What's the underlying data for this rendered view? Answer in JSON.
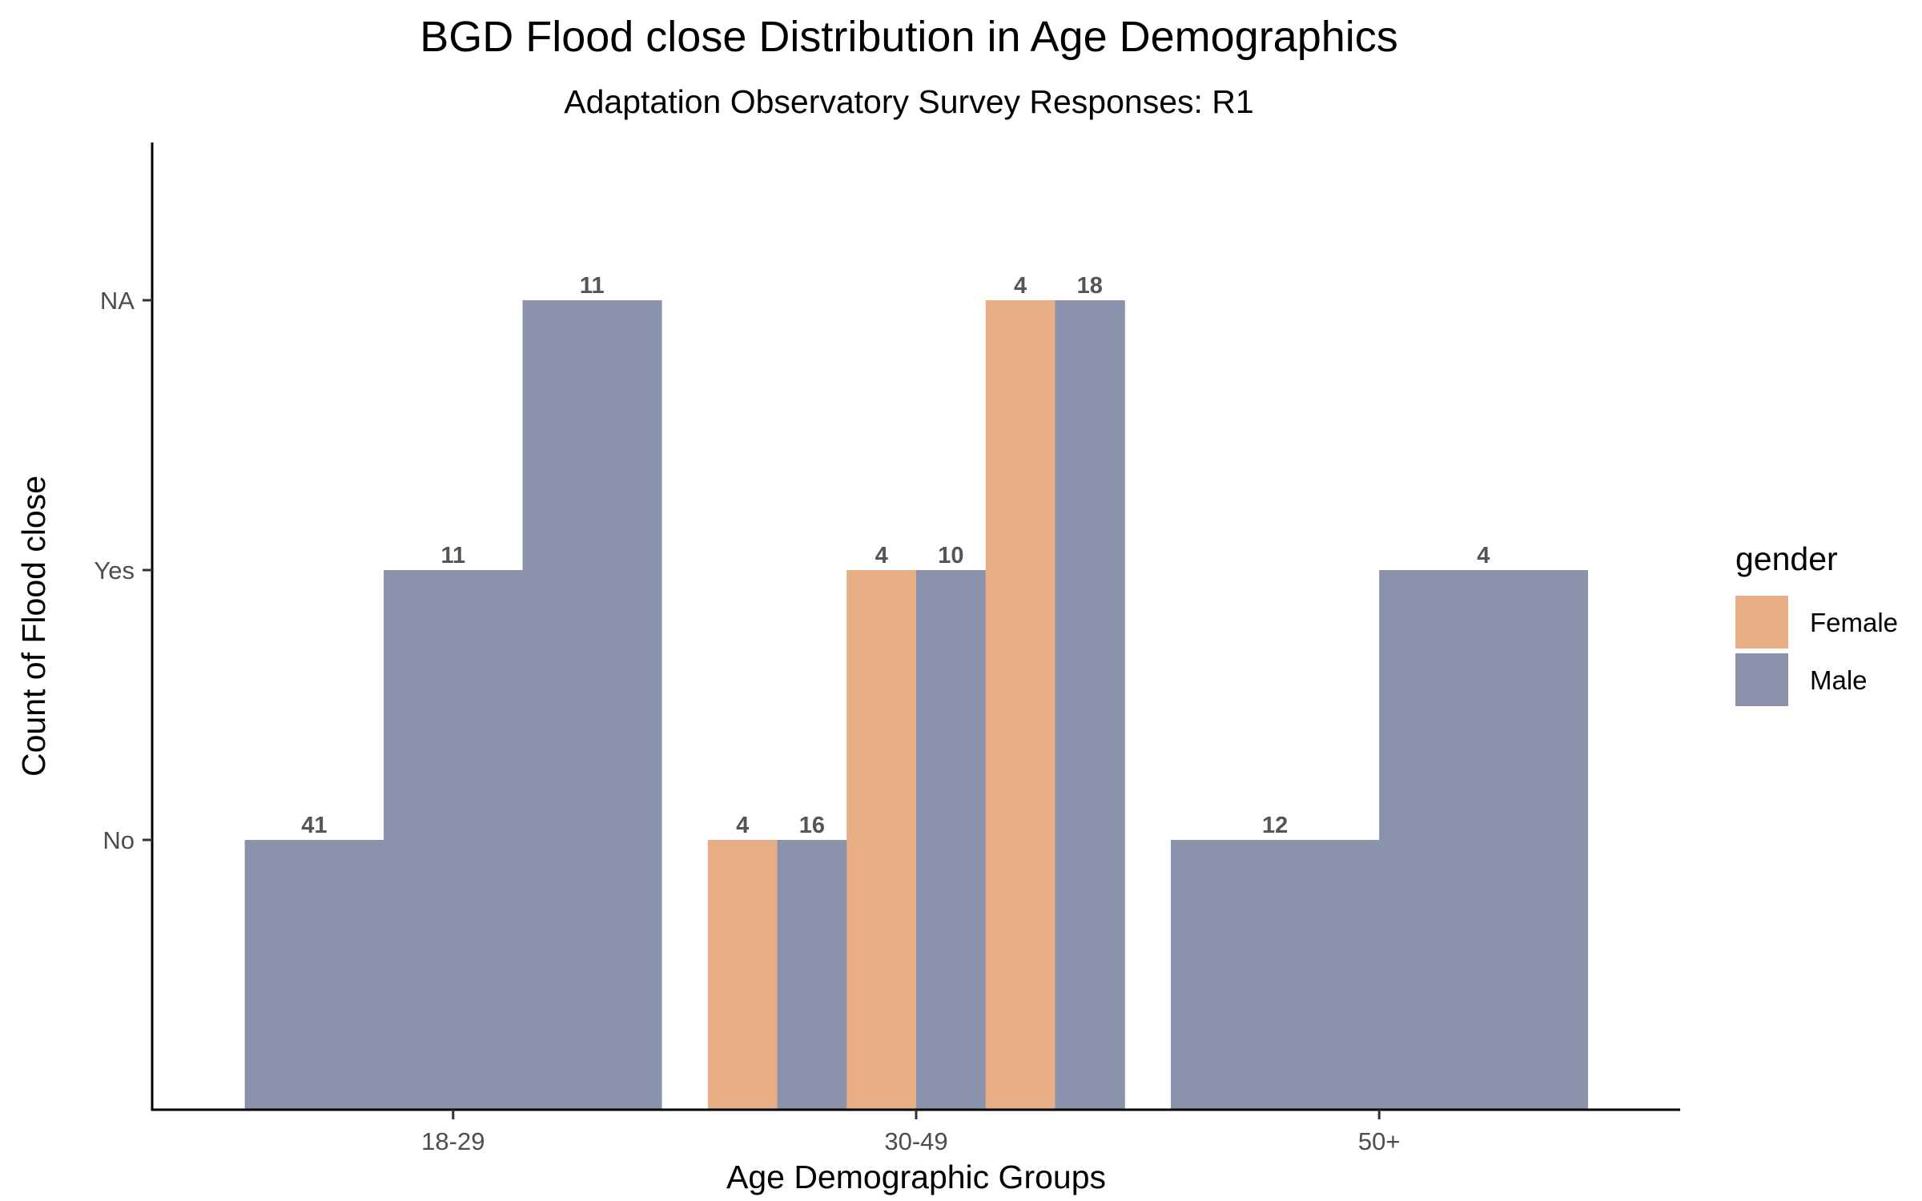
{
  "chart_data": {
    "type": "bar",
    "title": "BGD Flood close Distribution in Age Demographics",
    "subtitle": "Adaptation Observatory Survey Responses: R1",
    "xlabel": "Age Demographic Groups",
    "ylabel": "Count of Flood close",
    "x_categories": [
      "18-29",
      "30-49",
      "50+"
    ],
    "y_categories": [
      "No",
      "Yes",
      "NA"
    ],
    "legend": {
      "title": "gender",
      "position": "right",
      "entries": [
        {
          "name": "Female",
          "color": "#E8AE86"
        },
        {
          "name": "Male",
          "color": "#8B93AC"
        }
      ]
    },
    "grid": false,
    "groups": [
      {
        "category": "18-29",
        "bars": [
          {
            "gender": "Male",
            "response": "No",
            "count": 41
          },
          {
            "gender": "Male",
            "response": "Yes",
            "count": 11
          },
          {
            "gender": "Male",
            "response": "NA",
            "count": 11
          }
        ]
      },
      {
        "category": "30-49",
        "bars": [
          {
            "gender": "Female",
            "response": "No",
            "count": 4
          },
          {
            "gender": "Male",
            "response": "No",
            "count": 16
          },
          {
            "gender": "Female",
            "response": "Yes",
            "count": 4
          },
          {
            "gender": "Male",
            "response": "Yes",
            "count": 10
          },
          {
            "gender": "Female",
            "response": "NA",
            "count": 4
          },
          {
            "gender": "Male",
            "response": "NA",
            "count": 18
          }
        ]
      },
      {
        "category": "50+",
        "bars": [
          {
            "gender": "Male",
            "response": "No",
            "count": 12
          },
          {
            "gender": "Male",
            "response": "Yes",
            "count": 4
          }
        ]
      }
    ]
  }
}
